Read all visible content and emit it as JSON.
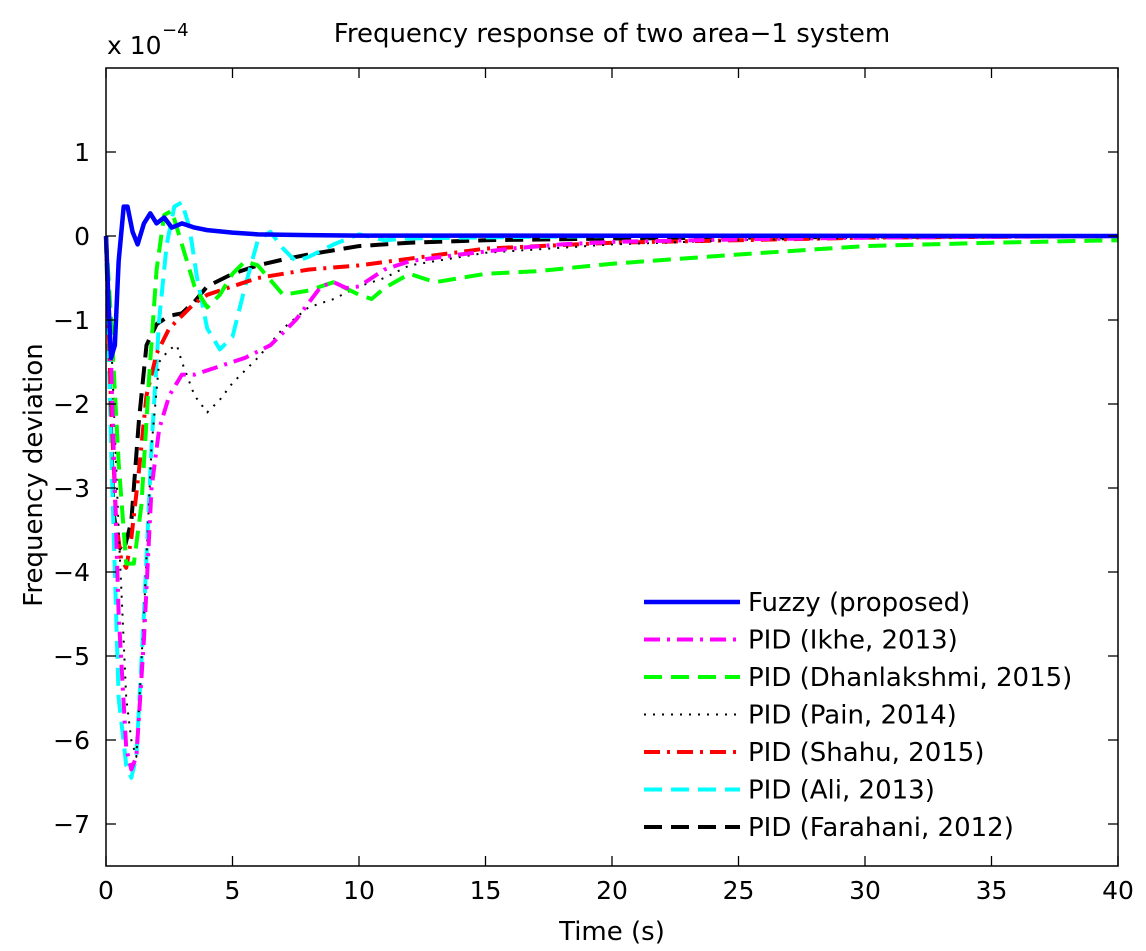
{
  "chart_data": {
    "type": "line",
    "title": "Frequency response of two area−1 system",
    "xlabel": "Time (s)",
    "ylabel": "Frequency deviation",
    "y_multiplier": "x 10",
    "y_exponent": "−4",
    "xlim": [
      0,
      40
    ],
    "ylim": [
      -7.5,
      2
    ],
    "xticks": [
      0,
      5,
      10,
      15,
      20,
      25,
      30,
      35,
      40
    ],
    "xtick_labels": [
      "0",
      "5",
      "10",
      "15",
      "20",
      "25",
      "30",
      "35",
      "40"
    ],
    "yticks": [
      1,
      0,
      -1,
      -2,
      -3,
      -4,
      -5,
      -6,
      -7
    ],
    "ytick_labels": [
      "1",
      "0",
      "−1",
      "−2",
      "−3",
      "−4",
      "−5",
      "−6",
      "−7"
    ],
    "grid": false,
    "legend_position": "lower-right",
    "series": [
      {
        "name": "Fuzzy (proposed)",
        "color": "#0000ff",
        "style": "solid",
        "points": [
          [
            0,
            0
          ],
          [
            0.1,
            -0.8
          ],
          [
            0.2,
            -1.45
          ],
          [
            0.35,
            -1.3
          ],
          [
            0.5,
            -0.3
          ],
          [
            0.7,
            0.35
          ],
          [
            0.85,
            0.35
          ],
          [
            1.05,
            0.05
          ],
          [
            1.25,
            -0.1
          ],
          [
            1.5,
            0.15
          ],
          [
            1.75,
            0.27
          ],
          [
            2.0,
            0.15
          ],
          [
            2.3,
            0.22
          ],
          [
            2.6,
            0.1
          ],
          [
            3.0,
            0.15
          ],
          [
            3.5,
            0.1
          ],
          [
            4,
            0.07
          ],
          [
            5,
            0.04
          ],
          [
            6,
            0.02
          ],
          [
            8,
            0.01
          ],
          [
            10,
            0.005
          ],
          [
            40,
            0
          ]
        ]
      },
      {
        "name": "PID (Ikhe, 2013)",
        "color": "#ff00ff",
        "style": "dashdot",
        "points": [
          [
            0,
            0
          ],
          [
            0.2,
            -1.5
          ],
          [
            0.5,
            -4.5
          ],
          [
            0.8,
            -6.1
          ],
          [
            1.0,
            -6.35
          ],
          [
            1.2,
            -6.2
          ],
          [
            1.5,
            -4.8
          ],
          [
            1.8,
            -3.0
          ],
          [
            2.1,
            -2.3
          ],
          [
            2.5,
            -1.9
          ],
          [
            3.0,
            -1.65
          ],
          [
            3.5,
            -1.65
          ],
          [
            4.5,
            -1.55
          ],
          [
            5.5,
            -1.45
          ],
          [
            6.5,
            -1.3
          ],
          [
            7.5,
            -1.0
          ],
          [
            8.5,
            -0.6
          ],
          [
            9,
            -0.55
          ],
          [
            9.5,
            -0.62
          ],
          [
            10,
            -0.6
          ],
          [
            11,
            -0.4
          ],
          [
            12,
            -0.3
          ],
          [
            14,
            -0.22
          ],
          [
            16,
            -0.15
          ],
          [
            18,
            -0.1
          ],
          [
            20,
            -0.07
          ],
          [
            25,
            -0.04
          ],
          [
            30,
            -0.02
          ],
          [
            40,
            0
          ]
        ]
      },
      {
        "name": "PID (Dhanlakshmi, 2015)",
        "color": "#00ff00",
        "style": "dashed",
        "points": [
          [
            0,
            0
          ],
          [
            0.2,
            -1.0
          ],
          [
            0.5,
            -2.7
          ],
          [
            0.8,
            -3.9
          ],
          [
            1.1,
            -3.9
          ],
          [
            1.4,
            -3.2
          ],
          [
            1.7,
            -1.7
          ],
          [
            2.0,
            -0.4
          ],
          [
            2.3,
            0.25
          ],
          [
            2.6,
            0.3
          ],
          [
            3.0,
            -0.1
          ],
          [
            3.5,
            -0.6
          ],
          [
            4.0,
            -0.85
          ],
          [
            4.5,
            -0.7
          ],
          [
            5.0,
            -0.45
          ],
          [
            5.5,
            -0.3
          ],
          [
            6.0,
            -0.35
          ],
          [
            7.0,
            -0.7
          ],
          [
            8.0,
            -0.65
          ],
          [
            9.0,
            -0.55
          ],
          [
            10.0,
            -0.7
          ],
          [
            10.5,
            -0.75
          ],
          [
            11,
            -0.62
          ],
          [
            12,
            -0.45
          ],
          [
            13,
            -0.55
          ],
          [
            14,
            -0.5
          ],
          [
            15,
            -0.45
          ],
          [
            17,
            -0.42
          ],
          [
            20,
            -0.33
          ],
          [
            25,
            -0.22
          ],
          [
            30,
            -0.12
          ],
          [
            35,
            -0.08
          ],
          [
            40,
            -0.05
          ]
        ]
      },
      {
        "name": "PID (Pain, 2014)",
        "color": "#000000",
        "style": "dotted",
        "points": [
          [
            0,
            0
          ],
          [
            0.2,
            -1.2
          ],
          [
            0.5,
            -3.5
          ],
          [
            0.8,
            -5.5
          ],
          [
            1.0,
            -6.0
          ],
          [
            1.2,
            -6.2
          ],
          [
            1.5,
            -4.5
          ],
          [
            1.8,
            -2.5
          ],
          [
            2.1,
            -1.5
          ],
          [
            2.5,
            -1.35
          ],
          [
            2.8,
            -1.3
          ],
          [
            3.0,
            -1.5
          ],
          [
            3.5,
            -1.9
          ],
          [
            4.0,
            -2.1
          ],
          [
            4.5,
            -1.95
          ],
          [
            5.0,
            -1.75
          ],
          [
            6.0,
            -1.45
          ],
          [
            7.0,
            -1.1
          ],
          [
            8.0,
            -0.85
          ],
          [
            9.0,
            -0.75
          ],
          [
            10.0,
            -0.6
          ],
          [
            11,
            -0.5
          ],
          [
            12,
            -0.35
          ],
          [
            13,
            -0.3
          ],
          [
            15,
            -0.2
          ],
          [
            20,
            -0.1
          ],
          [
            25,
            -0.05
          ],
          [
            30,
            -0.02
          ],
          [
            40,
            0
          ]
        ]
      },
      {
        "name": "PID (Shahu, 2015)",
        "color": "#ff0000",
        "style": "dashdot",
        "points": [
          [
            0,
            0
          ],
          [
            0.2,
            -2.0
          ],
          [
            0.4,
            -3.4
          ],
          [
            0.6,
            -3.85
          ],
          [
            0.8,
            -3.95
          ],
          [
            1.0,
            -3.6
          ],
          [
            1.3,
            -2.8
          ],
          [
            1.6,
            -1.9
          ],
          [
            2.0,
            -1.4
          ],
          [
            2.5,
            -1.1
          ],
          [
            3.0,
            -0.95
          ],
          [
            3.5,
            -0.8
          ],
          [
            4.0,
            -0.7
          ],
          [
            5,
            -0.6
          ],
          [
            6,
            -0.5
          ],
          [
            7,
            -0.45
          ],
          [
            8,
            -0.4
          ],
          [
            10,
            -0.35
          ],
          [
            12,
            -0.27
          ],
          [
            15,
            -0.15
          ],
          [
            20,
            -0.08
          ],
          [
            25,
            -0.05
          ],
          [
            30,
            -0.02
          ],
          [
            40,
            0
          ]
        ]
      },
      {
        "name": "PID (Ali, 2013)",
        "color": "#00ffff",
        "style": "dashed",
        "points": [
          [
            0,
            0
          ],
          [
            0.2,
            -2.5
          ],
          [
            0.5,
            -5.5
          ],
          [
            0.8,
            -6.3
          ],
          [
            1.0,
            -6.45
          ],
          [
            1.2,
            -6.2
          ],
          [
            1.5,
            -4.5
          ],
          [
            1.8,
            -2.5
          ],
          [
            2.1,
            -1.0
          ],
          [
            2.4,
            -0.1
          ],
          [
            2.7,
            0.35
          ],
          [
            3.0,
            0.4
          ],
          [
            3.3,
            0.1
          ],
          [
            3.6,
            -0.5
          ],
          [
            4.0,
            -1.1
          ],
          [
            4.5,
            -1.35
          ],
          [
            5.0,
            -1.2
          ],
          [
            5.5,
            -0.6
          ],
          [
            6.0,
            -0.05
          ],
          [
            6.5,
            0.05
          ],
          [
            7.0,
            -0.15
          ],
          [
            7.5,
            -0.3
          ],
          [
            8.0,
            -0.25
          ],
          [
            9.0,
            -0.1
          ],
          [
            10,
            0.02
          ],
          [
            11,
            -0.05
          ],
          [
            12,
            -0.03
          ],
          [
            14,
            -0.02
          ],
          [
            20,
            0
          ],
          [
            40,
            0
          ]
        ]
      },
      {
        "name": "PID (Farahani, 2012)",
        "color": "#000000",
        "style": "dashed",
        "points": [
          [
            0,
            0
          ],
          [
            0.15,
            -1.8
          ],
          [
            0.3,
            -3.3
          ],
          [
            0.5,
            -3.7
          ],
          [
            0.7,
            -3.75
          ],
          [
            1.0,
            -3.4
          ],
          [
            1.3,
            -2.2
          ],
          [
            1.6,
            -1.3
          ],
          [
            2.0,
            -1.05
          ],
          [
            2.5,
            -0.95
          ],
          [
            3.0,
            -0.92
          ],
          [
            3.5,
            -0.78
          ],
          [
            4.0,
            -0.6
          ],
          [
            5,
            -0.45
          ],
          [
            6,
            -0.35
          ],
          [
            7,
            -0.28
          ],
          [
            8,
            -0.22
          ],
          [
            10,
            -0.12
          ],
          [
            12,
            -0.08
          ],
          [
            15,
            -0.05
          ],
          [
            20,
            -0.03
          ],
          [
            30,
            -0.01
          ],
          [
            40,
            0
          ]
        ]
      }
    ]
  }
}
